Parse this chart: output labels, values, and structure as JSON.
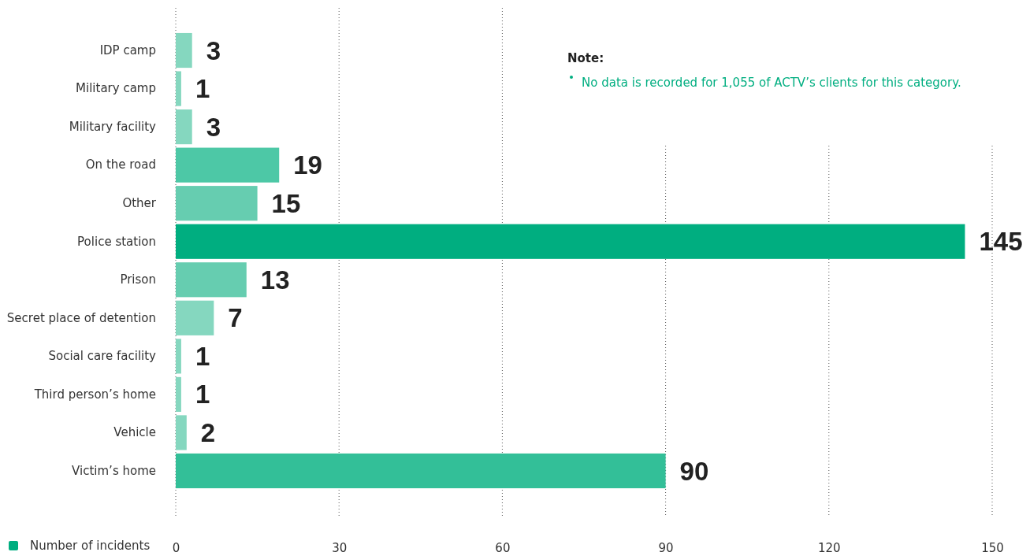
{
  "chart_data": {
    "type": "bar",
    "orientation": "horizontal",
    "categories": [
      "IDP camp",
      "Military camp",
      "Military facility",
      "On the road",
      "Other",
      "Police station",
      "Prison",
      "Secret place of detention",
      "Social care facility",
      "Third person’s home",
      "Vehicle",
      "Victim’s home"
    ],
    "series": [
      {
        "name": "Number of incidents",
        "color": "#00ae80",
        "values": [
          3,
          1,
          3,
          19,
          15,
          145,
          13,
          7,
          1,
          1,
          2,
          90
        ],
        "colors": [
          "#85d7bf",
          "#85d7bf",
          "#85d7bf",
          "#4dc8a6",
          "#66cdb0",
          "#00ae80",
          "#66cdb0",
          "#85d7bf",
          "#85d7bf",
          "#85d7bf",
          "#85d7bf",
          "#33bf98"
        ]
      }
    ],
    "xlim": [
      0,
      150
    ],
    "xticks": [
      0,
      30,
      60,
      90,
      120,
      150
    ],
    "grid": "x",
    "data_labels": true,
    "legend": "bottom left",
    "annotations": [
      "Note:",
      "No data is recorded for 1,055 of ACTV’s clients for this category."
    ]
  }
}
